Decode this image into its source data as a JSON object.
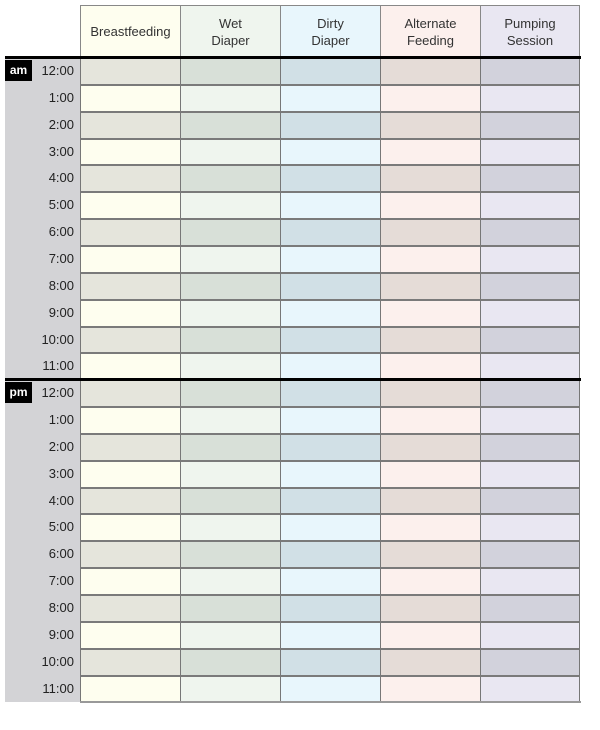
{
  "columns": [
    {
      "label_lines": [
        "Breastfeeding"
      ],
      "light": "#fefeef",
      "dark": "#e5e5dc"
    },
    {
      "label_lines": [
        "Wet",
        "Diaper"
      ],
      "light": "#eff5ee",
      "dark": "#d8e0d8"
    },
    {
      "label_lines": [
        "Dirty",
        "Diaper"
      ],
      "light": "#e8f6fc",
      "dark": "#d1e0e6"
    },
    {
      "label_lines": [
        "Alternate",
        "Feeding"
      ],
      "light": "#fcf0ed",
      "dark": "#e5dcd7"
    },
    {
      "label_lines": [
        "Pumping",
        "Session"
      ],
      "light": "#e9e7f2",
      "dark": "#d2d2dc"
    }
  ],
  "periods": [
    {
      "label": "am",
      "hours": [
        "12:00",
        "1:00",
        "2:00",
        "3:00",
        "4:00",
        "5:00",
        "6:00",
        "7:00",
        "8:00",
        "9:00",
        "10:00",
        "11:00"
      ]
    },
    {
      "label": "pm",
      "hours": [
        "12:00",
        "1:00",
        "2:00",
        "3:00",
        "4:00",
        "5:00",
        "6:00",
        "7:00",
        "8:00",
        "9:00",
        "10:00",
        "11:00"
      ]
    }
  ],
  "side_color": "#d3d3d6"
}
